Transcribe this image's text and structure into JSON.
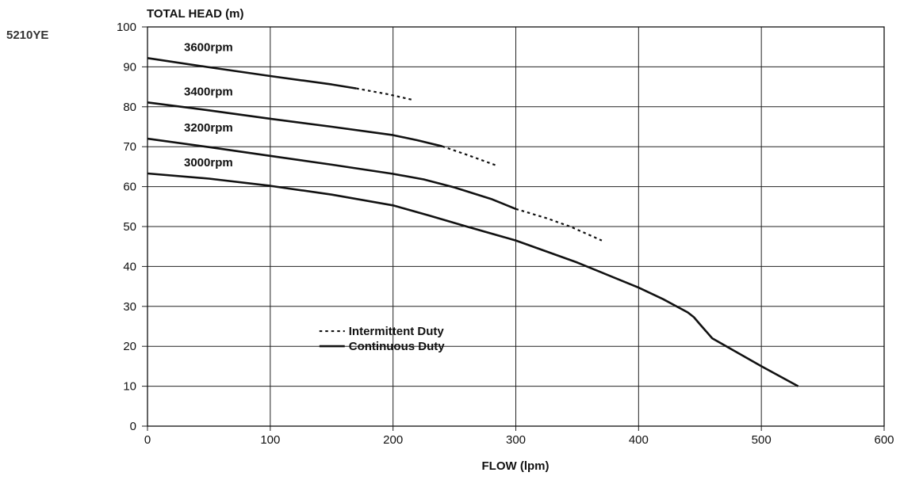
{
  "chart_data": {
    "type": "line",
    "model": "5210YE",
    "ylabel": "TOTAL HEAD (m)",
    "xlabel": "FLOW (lpm)",
    "xlim": [
      0,
      600
    ],
    "ylim": [
      0,
      100
    ],
    "x_ticks": [
      "0",
      "100",
      "200",
      "300",
      "400",
      "500",
      "600"
    ],
    "y_ticks": [
      "0",
      "10",
      "20",
      "30",
      "40",
      "50",
      "60",
      "70",
      "80",
      "90",
      "100"
    ],
    "grid": true,
    "legend": {
      "placement": "center-left",
      "entries": [
        {
          "label": "Intermittent Duty",
          "style": "dotted"
        },
        {
          "label": "Continuous Duty",
          "style": "solid"
        }
      ]
    },
    "series": [
      {
        "name": "3600rpm",
        "continuous": [
          [
            0,
            92.2
          ],
          [
            50,
            89.9
          ],
          [
            100,
            87.7
          ],
          [
            150,
            85.6
          ],
          [
            170,
            84.6
          ]
        ],
        "intermittent": [
          [
            170,
            84.6
          ],
          [
            195,
            83.2
          ],
          [
            215,
            81.8
          ]
        ]
      },
      {
        "name": "3400rpm",
        "continuous": [
          [
            0,
            81.1
          ],
          [
            50,
            79.1
          ],
          [
            100,
            77.0
          ],
          [
            150,
            75.0
          ],
          [
            200,
            72.9
          ],
          [
            220,
            71.6
          ],
          [
            240,
            70.1
          ]
        ],
        "intermittent": [
          [
            240,
            70.1
          ],
          [
            260,
            68.0
          ],
          [
            285,
            65.2
          ]
        ]
      },
      {
        "name": "3200rpm",
        "continuous": [
          [
            0,
            72.0
          ],
          [
            50,
            69.9
          ],
          [
            100,
            67.7
          ],
          [
            150,
            65.5
          ],
          [
            200,
            63.2
          ],
          [
            225,
            61.8
          ],
          [
            250,
            59.8
          ],
          [
            280,
            56.9
          ],
          [
            300,
            54.4
          ]
        ],
        "intermittent": [
          [
            300,
            54.4
          ],
          [
            325,
            52.1
          ],
          [
            345,
            49.9
          ],
          [
            370,
            46.5
          ]
        ]
      },
      {
        "name": "3000rpm",
        "continuous": [
          [
            0,
            63.3
          ],
          [
            50,
            62.0
          ],
          [
            100,
            60.2
          ],
          [
            150,
            58.0
          ],
          [
            200,
            55.3
          ],
          [
            230,
            52.7
          ],
          [
            260,
            50.0
          ],
          [
            300,
            46.5
          ],
          [
            350,
            41.0
          ],
          [
            400,
            34.7
          ],
          [
            420,
            31.8
          ],
          [
            440,
            28.5
          ],
          [
            445,
            27.3
          ],
          [
            450,
            25.5
          ],
          [
            460,
            22.0
          ],
          [
            480,
            18.5
          ],
          [
            500,
            15.0
          ],
          [
            530,
            10.0
          ]
        ],
        "intermittent": []
      }
    ]
  }
}
